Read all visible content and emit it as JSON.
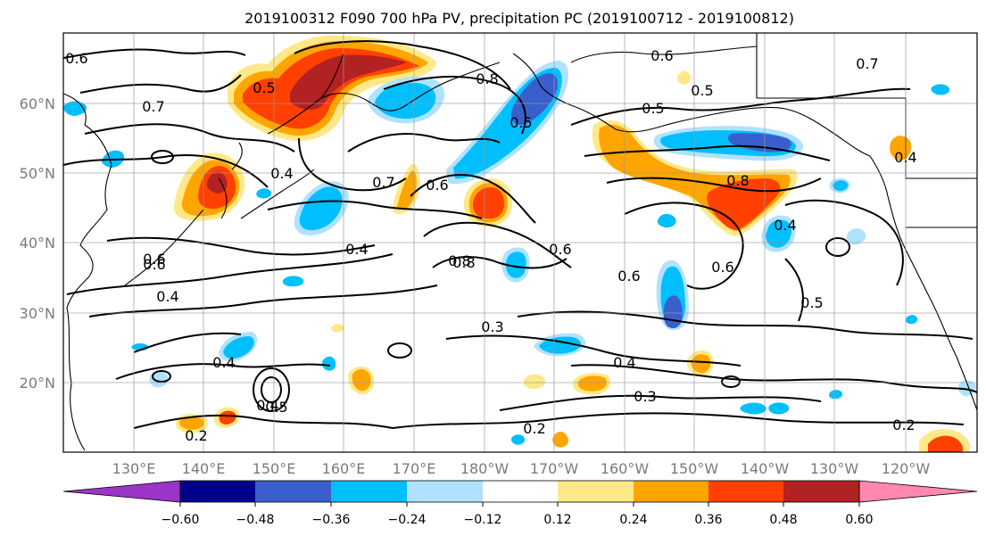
{
  "figure": {
    "title": "2019100312 F090 700 hPa PV, precipitation PC (2019100712 - 2019100812)"
  },
  "map": {
    "lat_labels": [
      "60°N",
      "50°N",
      "40°N",
      "30°N",
      "20°N"
    ],
    "lon_labels": [
      "130°E",
      "140°E",
      "150°E",
      "160°E",
      "170°E",
      "180°W",
      "170°W",
      "160°W",
      "150°W",
      "140°W",
      "130°W",
      "120°W"
    ],
    "contour_labels": [
      "0.6",
      "0.7",
      "0.5",
      "0.6",
      "0.4",
      "0.7",
      "0.6",
      "0.8",
      "0.8",
      "0.5",
      "0.6",
      "0.7",
      "0.5",
      "0.5",
      "0.4",
      "0.8",
      "0.6",
      "0.6",
      "0.6",
      "0.5",
      "0.4",
      "0.8",
      "0.4",
      "0.6",
      "0.4",
      "0.3",
      "0.4",
      "0.4",
      "0.5",
      "0.3",
      "0.2",
      "0.2",
      "0.2",
      "0.4"
    ],
    "colorbar": {
      "tick_labels": [
        "−0.60",
        "−0.48",
        "−0.36",
        "−0.24",
        "−0.12",
        "0.12",
        "0.24",
        "0.36",
        "0.48",
        "0.60"
      ],
      "colors": [
        "#9a35c8",
        "#00008b",
        "#3a5fcd",
        "#00bfff",
        "#b0e2ff",
        "#ffffff",
        "#ffe888",
        "#ffa500",
        "#ff4000",
        "#b22222",
        "#ff88b0"
      ]
    },
    "shading_colors": {
      "neg1": "#b0e2ff",
      "neg2": "#00bfff",
      "neg3": "#3a5fcd",
      "neg4": "#00008b",
      "pos1": "#ffe888",
      "pos2": "#ffa500",
      "pos3": "#ff4000",
      "pos4": "#b22222"
    }
  }
}
